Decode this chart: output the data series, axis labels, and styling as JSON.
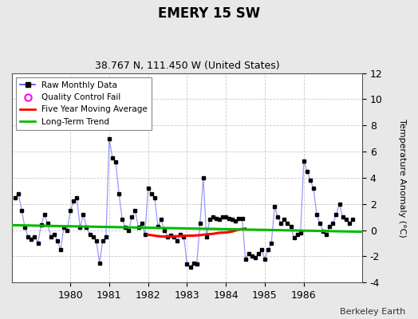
{
  "title": "EMERY 15 SW",
  "subtitle": "38.767 N, 111.450 W (United States)",
  "ylabel": "Temperature Anomaly (°C)",
  "attribution": "Berkeley Earth",
  "ylim": [
    -4,
    12
  ],
  "yticks": [
    -4,
    -2,
    0,
    2,
    4,
    6,
    8,
    10,
    12
  ],
  "xlim": [
    1978.5,
    1987.5
  ],
  "xticks": [
    1980,
    1981,
    1982,
    1983,
    1984,
    1985,
    1986
  ],
  "background_color": "#e8e8e8",
  "plot_bg_color": "#ffffff",
  "raw_color": "#4444ff",
  "moving_avg_color": "#ff0000",
  "trend_color": "#00bb00",
  "monthly_data_x": [
    1978.583,
    1978.667,
    1978.75,
    1978.833,
    1978.917,
    1979.0,
    1979.083,
    1979.167,
    1979.25,
    1979.333,
    1979.417,
    1979.5,
    1979.583,
    1979.667,
    1979.75,
    1979.833,
    1979.917,
    1980.0,
    1980.083,
    1980.167,
    1980.25,
    1980.333,
    1980.417,
    1980.5,
    1980.583,
    1980.667,
    1980.75,
    1980.833,
    1980.917,
    1981.0,
    1981.083,
    1981.167,
    1981.25,
    1981.333,
    1981.417,
    1981.5,
    1981.583,
    1981.667,
    1981.75,
    1981.833,
    1981.917,
    1982.0,
    1982.083,
    1982.167,
    1982.25,
    1982.333,
    1982.417,
    1982.5,
    1982.583,
    1982.667,
    1982.75,
    1982.833,
    1982.917,
    1983.0,
    1983.083,
    1983.167,
    1983.25,
    1983.333,
    1983.417,
    1983.5,
    1983.583,
    1983.667,
    1983.75,
    1983.833,
    1983.917,
    1984.0,
    1984.083,
    1984.167,
    1984.25,
    1984.333,
    1984.417,
    1984.5,
    1984.583,
    1984.667,
    1984.75,
    1984.833,
    1984.917,
    1985.0,
    1985.083,
    1985.167,
    1985.25,
    1985.333,
    1985.417,
    1985.5,
    1985.583,
    1985.667,
    1985.75,
    1985.833,
    1985.917,
    1986.0,
    1986.083,
    1986.167,
    1986.25,
    1986.333,
    1986.417,
    1986.5,
    1986.583,
    1986.667,
    1986.75,
    1986.833,
    1986.917,
    1987.0,
    1987.083,
    1987.167,
    1987.25
  ],
  "monthly_data_y": [
    2.5,
    2.8,
    1.5,
    0.2,
    -0.5,
    -0.7,
    -0.5,
    -1.0,
    0.4,
    1.2,
    0.5,
    -0.5,
    -0.3,
    -0.8,
    -1.5,
    0.2,
    0.0,
    1.5,
    2.2,
    2.5,
    0.2,
    1.2,
    0.2,
    -0.3,
    -0.5,
    -0.8,
    -2.5,
    -0.8,
    -0.5,
    7.0,
    5.5,
    5.2,
    2.8,
    0.8,
    0.2,
    0.0,
    1.0,
    1.5,
    0.2,
    0.5,
    -0.3,
    3.2,
    2.8,
    2.5,
    0.3,
    0.8,
    0.0,
    -0.5,
    -0.4,
    -0.5,
    -0.8,
    -0.3,
    -0.5,
    -2.6,
    -2.8,
    -2.5,
    -2.6,
    0.5,
    4.0,
    -0.5,
    0.8,
    1.0,
    0.9,
    0.8,
    1.0,
    1.0,
    0.9,
    0.8,
    0.7,
    0.9,
    0.9,
    -2.2,
    -1.8,
    -2.0,
    -2.1,
    -1.8,
    -1.5,
    -2.2,
    -1.5,
    -1.0,
    1.8,
    1.0,
    0.5,
    0.8,
    0.5,
    0.3,
    -0.6,
    -0.3,
    -0.2,
    5.3,
    4.5,
    3.8,
    3.2,
    1.2,
    0.5,
    -0.1,
    -0.3,
    0.3,
    0.5,
    1.2,
    2.0,
    1.0,
    0.8,
    0.5,
    0.8
  ],
  "moving_avg_x": [
    1982.0,
    1982.167,
    1982.333,
    1982.5,
    1982.667,
    1982.833,
    1983.0,
    1983.167,
    1983.333,
    1983.5,
    1983.667,
    1983.833,
    1984.0,
    1984.167,
    1984.333,
    1984.5
  ],
  "moving_avg_y": [
    -0.35,
    -0.42,
    -0.48,
    -0.5,
    -0.48,
    -0.44,
    -0.42,
    -0.42,
    -0.38,
    -0.32,
    -0.28,
    -0.2,
    -0.18,
    -0.1,
    0.05,
    0.12
  ],
  "trend_x": [
    1978.5,
    1987.5
  ],
  "trend_y": [
    0.38,
    -0.12
  ]
}
